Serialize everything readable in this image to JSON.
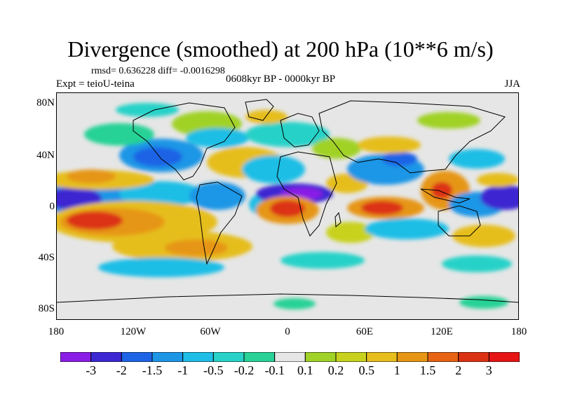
{
  "title": "Divergence (smoothed) at 200 hPa (10**6 m/s)",
  "stats": "rmsd= 0.636228 diff= -0.0016298",
  "experiment": "Expt = teioU-teina",
  "period": "0608kyr BP - 0000kyr BP",
  "season": "JJA",
  "map": {
    "background_color": "#e6e6e6",
    "coastline_color": "#000000",
    "lat_ticks": [
      "80N",
      "40N",
      "0",
      "40S",
      "80S"
    ],
    "lon_ticks": [
      "180",
      "120W",
      "60W",
      "0",
      "60E",
      "120E",
      "180"
    ]
  },
  "colorbar": {
    "labels": [
      "-3",
      "-2",
      "-1.5",
      "-1",
      "-0.5",
      "-0.2",
      "-0.1",
      "0.1",
      "0.2",
      "0.5",
      "1",
      "1.5",
      "2",
      "3"
    ],
    "colors": [
      "#8a1ee6",
      "#3c28d2",
      "#1e64e6",
      "#1e96e6",
      "#1ebee6",
      "#28d2c8",
      "#28d296",
      "#e6e6e6",
      "#a0d228",
      "#c8d21e",
      "#e6be1e",
      "#e69614",
      "#e66414",
      "#dc3214",
      "#e61414"
    ]
  }
}
